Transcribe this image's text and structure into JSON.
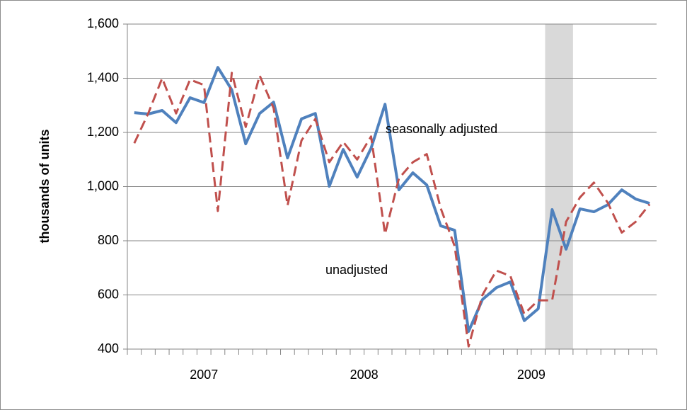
{
  "chart_data": {
    "type": "line",
    "ylabel": "thousands of units",
    "categories": [
      null,
      null,
      null,
      null,
      null,
      null,
      null,
      null,
      null,
      null,
      null,
      null,
      null,
      null,
      null,
      null,
      null,
      null,
      null,
      null,
      null,
      null,
      null,
      null,
      null,
      null,
      null,
      null,
      null,
      null,
      null,
      null,
      null,
      null,
      null,
      null,
      null,
      null
    ],
    "x_groups": [
      {
        "label": "2007",
        "start": 0,
        "end": 10
      },
      {
        "label": "2008",
        "start": 11,
        "end": 22
      },
      {
        "label": "2009",
        "start": 23,
        "end": 34
      }
    ],
    "shaded_period": {
      "start": 30,
      "end": 31,
      "color": "#d9d9d9"
    },
    "series": [
      {
        "name": "seasonally adjusted",
        "color": "#4f81bd",
        "dash": false,
        "values": [
          1273,
          1268,
          1281,
          1236,
          1328,
          1310,
          1440,
          1357,
          1158,
          1270,
          1312,
          1106,
          1250,
          1270,
          1001,
          1137,
          1035,
          1142,
          1304,
          988,
          1051,
          1006,
          855,
          839,
          465,
          583,
          627,
          648,
          505,
          549,
          915,
          769,
          918,
          907,
          933,
          988,
          954,
          938
        ]
      },
      {
        "name": "unadjusted",
        "color": "#c0504d",
        "dash": true,
        "values": [
          1160,
          1270,
          1400,
          1270,
          1395,
          1375,
          910,
          1420,
          1220,
          1410,
          1290,
          930,
          1170,
          1250,
          1090,
          1165,
          1100,
          1185,
          825,
          1030,
          1090,
          1120,
          920,
          780,
          410,
          600,
          690,
          670,
          530,
          580,
          580,
          870,
          960,
          1015,
          940,
          830,
          870,
          935
        ]
      }
    ],
    "annotations": [
      {
        "text": "seasonally adjusted",
        "series": 0
      },
      {
        "text": "unadjusted",
        "series": 1
      }
    ],
    "ylim": [
      400,
      1600
    ],
    "yticks": [
      {
        "value": 400,
        "label": "400"
      },
      {
        "value": 600,
        "label": "600"
      },
      {
        "value": 800,
        "label": "800"
      },
      {
        "value": 1000,
        "label": "1,000"
      },
      {
        "value": 1200,
        "label": "1,200"
      },
      {
        "value": 1400,
        "label": "1,400"
      },
      {
        "value": 1600,
        "label": "1,600"
      }
    ],
    "grid": true
  }
}
